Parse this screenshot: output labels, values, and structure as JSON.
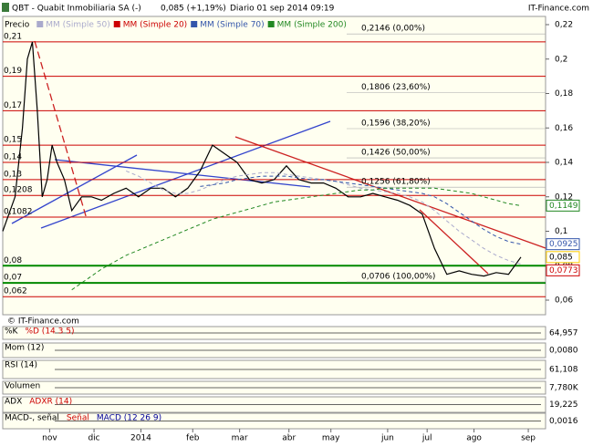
{
  "chart_data": {
    "type": "line",
    "title": "QBT - Quabit Inmobiliaria SA (-)",
    "quote": "0,085 (+1,19%)",
    "period": "Diario  01 sep 2014 09:19",
    "brand": "IT-Finance.com",
    "watermark": "© IT-Finance.com",
    "xlim": [
      0,
      220
    ],
    "xticks": [
      {
        "value": 19,
        "label": "nov"
      },
      {
        "value": 37,
        "label": "dic"
      },
      {
        "value": 56,
        "label": "2014"
      },
      {
        "value": 77,
        "label": "feb"
      },
      {
        "value": 96,
        "label": "mar"
      },
      {
        "value": 116,
        "label": "abr"
      },
      {
        "value": 133,
        "label": "may"
      },
      {
        "value": 156,
        "label": "jun"
      },
      {
        "value": 172,
        "label": "jul"
      },
      {
        "value": 191,
        "label": "ago"
      },
      {
        "value": 213,
        "label": "sep"
      }
    ],
    "ylim": [
      0.06,
      0.22
    ],
    "yticks": [
      {
        "value": 0.22,
        "label": "0,22"
      },
      {
        "value": 0.2,
        "label": "0,2"
      },
      {
        "value": 0.18,
        "label": "0,18"
      },
      {
        "value": 0.16,
        "label": "0,16"
      },
      {
        "value": 0.14,
        "label": "0,14"
      },
      {
        "value": 0.12,
        "label": "0,12"
      },
      {
        "value": 0.1,
        "label": "0,1"
      },
      {
        "value": 0.08,
        "label": "0,08"
      },
      {
        "value": 0.06,
        "label": "0,06"
      }
    ],
    "x": [
      0,
      5,
      8,
      10,
      12,
      14,
      16,
      18,
      20,
      22,
      25,
      28,
      32,
      36,
      40,
      45,
      50,
      55,
      60,
      65,
      70,
      75,
      80,
      85,
      90,
      95,
      100,
      105,
      110,
      115,
      120,
      125,
      130,
      135,
      140,
      145,
      150,
      155,
      160,
      165,
      170,
      175,
      180,
      185,
      190,
      195,
      200,
      205,
      210
    ],
    "series": [
      {
        "name": "Precio",
        "color": "#000000",
        "values": [
          0.1,
          0.12,
          0.16,
          0.2,
          0.21,
          0.17,
          0.12,
          0.13,
          0.15,
          0.14,
          0.13,
          0.112,
          0.12,
          0.12,
          0.118,
          0.122,
          0.125,
          0.12,
          0.125,
          0.125,
          0.12,
          0.125,
          0.135,
          0.15,
          0.145,
          0.14,
          0.13,
          0.128,
          0.13,
          0.138,
          0.13,
          0.128,
          0.128,
          0.125,
          0.12,
          0.12,
          0.122,
          0.12,
          0.118,
          0.115,
          0.11,
          0.09,
          0.075,
          0.077,
          0.075,
          0.074,
          0.076,
          0.075,
          0.085
        ]
      },
      {
        "name": "MM (Simple 50)",
        "color": "#aaaacc",
        "values": [
          null,
          null,
          null,
          null,
          null,
          null,
          null,
          null,
          null,
          null,
          null,
          null,
          null,
          null,
          null,
          null,
          0.135,
          0.132,
          0.128,
          0.124,
          0.122,
          0.122,
          0.124,
          0.127,
          0.13,
          0.132,
          0.133,
          0.134,
          0.134,
          0.133,
          0.132,
          0.131,
          0.13,
          0.129,
          0.127,
          0.125,
          0.124,
          0.123,
          0.122,
          0.12,
          0.117,
          0.112,
          0.106,
          0.1,
          0.095,
          0.09,
          0.086,
          0.083,
          0.081
        ]
      },
      {
        "name": "MM (Simple 20)",
        "color": "#cc0000",
        "values": [
          null,
          null,
          null,
          null,
          null,
          null,
          null,
          null,
          null,
          null,
          null,
          null,
          null,
          null,
          null,
          null,
          null,
          null,
          null,
          null,
          null,
          null,
          null,
          null,
          null,
          null,
          null,
          null,
          null,
          null,
          null,
          null,
          null,
          null,
          null,
          null,
          null,
          null,
          null,
          null,
          null,
          null,
          null,
          null,
          null,
          null,
          null,
          null,
          null
        ]
      },
      {
        "name": "MM (Simple 70)",
        "color": "#3355aa",
        "values": [
          null,
          null,
          null,
          null,
          null,
          null,
          null,
          null,
          null,
          null,
          null,
          null,
          null,
          null,
          null,
          null,
          null,
          null,
          null,
          null,
          null,
          null,
          0.126,
          0.127,
          0.128,
          0.13,
          0.131,
          0.132,
          0.132,
          0.132,
          0.131,
          0.13,
          0.13,
          0.129,
          0.128,
          0.127,
          0.126,
          0.125,
          0.124,
          0.123,
          0.122,
          0.12,
          0.116,
          0.111,
          0.106,
          0.101,
          0.097,
          0.094,
          0.0925
        ]
      },
      {
        "name": "MM (Simple 200)",
        "color": "#228822",
        "values": [
          null,
          null,
          null,
          null,
          null,
          null,
          null,
          null,
          null,
          null,
          null,
          0.066,
          0.07,
          0.074,
          0.078,
          0.082,
          0.086,
          0.089,
          0.092,
          0.095,
          0.098,
          0.101,
          0.104,
          0.107,
          0.109,
          0.111,
          0.113,
          0.115,
          0.117,
          0.118,
          0.119,
          0.12,
          0.121,
          0.122,
          0.123,
          0.124,
          0.124,
          0.125,
          0.125,
          0.125,
          0.125,
          0.125,
          0.124,
          0.123,
          0.122,
          0.12,
          0.118,
          0.116,
          0.1149
        ]
      }
    ],
    "levels": [
      {
        "value": 0.21,
        "label": "0,21",
        "color": "#cc0000"
      },
      {
        "value": 0.19,
        "label": "0,19",
        "color": "#cc0000"
      },
      {
        "value": 0.17,
        "label": "0,17",
        "color": "#cc0000"
      },
      {
        "value": 0.15,
        "label": "0,15",
        "color": "#cc0000"
      },
      {
        "value": 0.14,
        "label": "0,14",
        "color": "#cc0000"
      },
      {
        "value": 0.13,
        "label": "0,13",
        "color": "#cc0000"
      },
      {
        "value": 0.1208,
        "label": "0,1208",
        "color": "#cc0000"
      },
      {
        "value": 0.1082,
        "label": "0,1082",
        "color": "#cc0000"
      },
      {
        "value": 0.08,
        "label": "0,08",
        "color": "#008800"
      },
      {
        "value": 0.07,
        "label": "0,07",
        "color": "#008800"
      },
      {
        "value": 0.062,
        "label": "0,062",
        "color": "#cc0000"
      }
    ],
    "fibonacci": [
      {
        "value": 0.2146,
        "label": "0,2146 (0,00%)"
      },
      {
        "value": 0.1806,
        "label": "0,1806 (23,60%)"
      },
      {
        "value": 0.1596,
        "label": "0,1596 (38,20%)"
      },
      {
        "value": 0.1426,
        "label": "0,1426 (50,00%)"
      },
      {
        "value": 0.1256,
        "label": "0,1256 (61,80%)"
      },
      {
        "value": 0.0706,
        "label": "0,0706 (100,00%)"
      }
    ],
    "price_labels": [
      {
        "value": 0.1149,
        "label": "0,1149",
        "color": "#228822"
      },
      {
        "value": 0.0925,
        "label": "0,0925",
        "color": "#3355aa"
      },
      {
        "value": 0.085,
        "label": "0,085",
        "color": "#ffcc00"
      },
      {
        "value": 0.0773,
        "label": "0,0773",
        "color": "#cc0000"
      }
    ],
    "indicators": [
      {
        "labels": [
          "%K",
          "%D (14 3 5)"
        ],
        "colors": [
          "#000000",
          "#cc0000"
        ],
        "value_label": "64,957"
      },
      {
        "labels": [
          "Mom (12)"
        ],
        "colors": [
          "#000000"
        ],
        "value_label": "0,0080"
      },
      {
        "labels": [
          "RSI (14)"
        ],
        "colors": [
          "#000000"
        ],
        "value_label": "61,108"
      },
      {
        "labels": [
          "Volumen"
        ],
        "colors": [
          "#000000"
        ],
        "value_label": "7,780K"
      },
      {
        "labels": [
          "ADX",
          "ADXR (14)"
        ],
        "colors": [
          "#000000",
          "#cc0000"
        ],
        "value_label": "19,225"
      },
      {
        "labels": [
          "MACD-, señal",
          "Señal",
          "MACD (12 26 9)"
        ],
        "colors": [
          "#000000",
          "#cc0000",
          "#000099"
        ],
        "value_label": "0,0016"
      }
    ]
  }
}
